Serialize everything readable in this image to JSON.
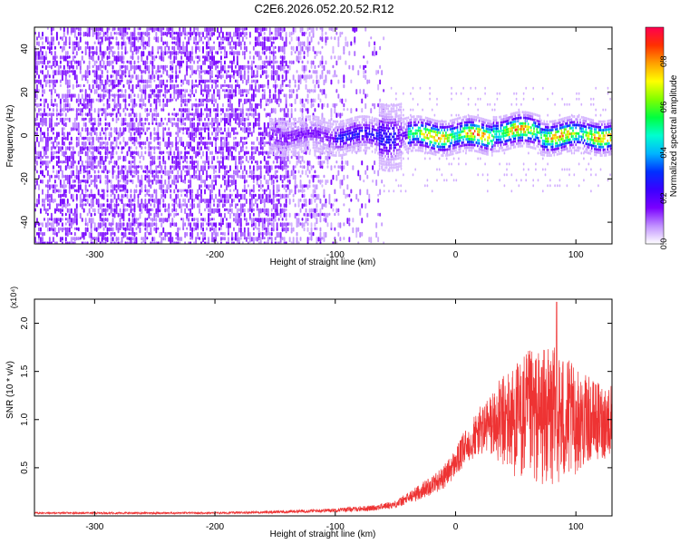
{
  "chart_data": [
    {
      "id": "spectrogram",
      "type": "heatmap",
      "title": "C2E6.2026.052.20.52.R12",
      "xlabel": "Height of straight line (km)",
      "ylabel": "Frequency (Hz)",
      "xlim": [
        -350,
        130
      ],
      "ylim": [
        -50,
        50
      ],
      "xticks": [
        -300,
        -200,
        -100,
        0,
        100
      ],
      "xtick_labels": [
        "-300",
        "-200",
        "-100",
        "0",
        "100"
      ],
      "yticks": [
        -40,
        -20,
        0,
        20,
        40
      ],
      "ytick_labels": [
        "-40",
        "-20",
        "0",
        "20",
        "40"
      ],
      "colorbar": {
        "label": "Normalized spectral amplitude",
        "range": [
          0,
          0.95
        ],
        "ticks": [
          0.0,
          0.2,
          0.4,
          0.6,
          0.8
        ],
        "tick_labels": [
          "0.0",
          "0.2",
          "0.4",
          "0.6",
          "0.8"
        ],
        "colors": [
          "#ffffff",
          "#c090ff",
          "#7a00ff",
          "#3a00ff",
          "#0030ff",
          "#00b4ff",
          "#00ffd0",
          "#00ff40",
          "#80ff00",
          "#ffff00",
          "#ffa000",
          "#ff3000",
          "#ff0050"
        ]
      },
      "regions": [
        {
          "name": "broadband noise",
          "x_range": [
            -350,
            -60
          ],
          "y_range": [
            -50,
            50
          ],
          "amplitude": [
            0.03,
            0.15
          ]
        },
        {
          "name": "central band",
          "x_range": [
            -155,
            130
          ],
          "center_hz": 0,
          "half_width_hz": 8,
          "amplitude_peak": 0.93
        }
      ]
    },
    {
      "id": "snr",
      "type": "line",
      "xlabel": "Height of straight line (km)",
      "ylabel": "SNR (10 * v/v)",
      "y_multiplier": "(x10⁴)",
      "xlim": [
        -350,
        130
      ],
      "ylim": [
        0,
        2.25
      ],
      "xticks": [
        -300,
        -200,
        -100,
        0,
        100
      ],
      "xtick_labels": [
        "-300",
        "-200",
        "-100",
        "0",
        "100"
      ],
      "yticks": [
        0.5,
        1.0,
        1.5,
        2.0
      ],
      "ytick_labels": [
        "0.5",
        "1.0",
        "1.5",
        "2.0"
      ],
      "color": "#ee3333",
      "envelope": {
        "x": [
          -350,
          -300,
          -200,
          -150,
          -100,
          -70,
          -50,
          -40,
          -30,
          -20,
          -10,
          0,
          10,
          20,
          30,
          40,
          50,
          60,
          70,
          80,
          90,
          100,
          110,
          120,
          130
        ],
        "mean": [
          0.03,
          0.03,
          0.03,
          0.04,
          0.06,
          0.08,
          0.12,
          0.18,
          0.25,
          0.32,
          0.4,
          0.55,
          0.75,
          0.88,
          0.95,
          0.98,
          1.0,
          1.02,
          1.03,
          1.02,
          1.0,
          0.98,
          1.0,
          0.98,
          1.0
        ],
        "spread": [
          0.01,
          0.01,
          0.01,
          0.015,
          0.02,
          0.03,
          0.04,
          0.06,
          0.08,
          0.1,
          0.12,
          0.15,
          0.2,
          0.25,
          0.35,
          0.5,
          0.6,
          0.7,
          0.7,
          0.75,
          0.7,
          0.55,
          0.45,
          0.4,
          0.4
        ],
        "peak": 2.22,
        "peak_x": 84
      }
    }
  ]
}
